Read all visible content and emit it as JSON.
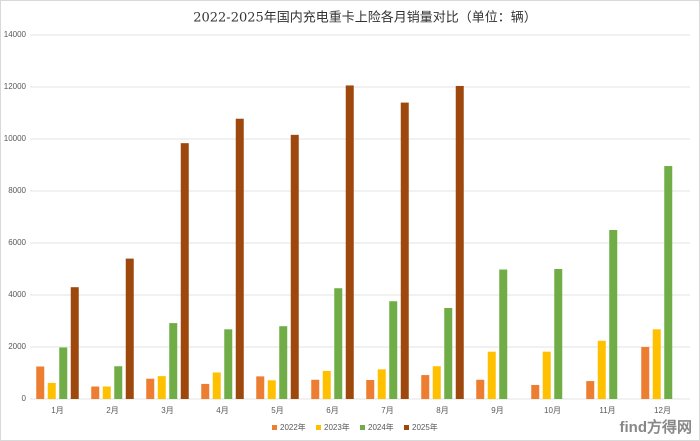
{
  "chart_data": {
    "type": "bar",
    "title": "2022-2025年国内充电重卡上险各月销量对比（单位：辆）",
    "categories": [
      "1月",
      "2月",
      "3月",
      "4月",
      "5月",
      "6月",
      "7月",
      "8月",
      "9月",
      "10月",
      "11月",
      "12月"
    ],
    "series": [
      {
        "name": "2022年",
        "color": "#ed7d31",
        "values": [
          1250,
          480,
          780,
          580,
          870,
          740,
          730,
          920,
          740,
          540,
          690,
          2000
        ]
      },
      {
        "name": "2023年",
        "color": "#ffc000",
        "values": [
          620,
          480,
          880,
          1020,
          720,
          1080,
          1140,
          1260,
          1820,
          1820,
          2240,
          2680
        ]
      },
      {
        "name": "2024年",
        "color": "#70ad47",
        "values": [
          1980,
          1260,
          2920,
          2680,
          2800,
          4260,
          3760,
          3500,
          4980,
          5000,
          6500,
          8960
        ]
      },
      {
        "name": "2025年",
        "color": "#9e480e",
        "values": [
          4300,
          5400,
          9840,
          10780,
          10160,
          12060,
          11400,
          12040,
          null,
          null,
          null,
          null
        ]
      }
    ],
    "ylim": [
      0,
      14000
    ],
    "yticks": [
      0,
      2000,
      4000,
      6000,
      8000,
      10000,
      12000,
      14000
    ],
    "grid": true,
    "legend": "bottom",
    "watermark": "find方得网"
  }
}
